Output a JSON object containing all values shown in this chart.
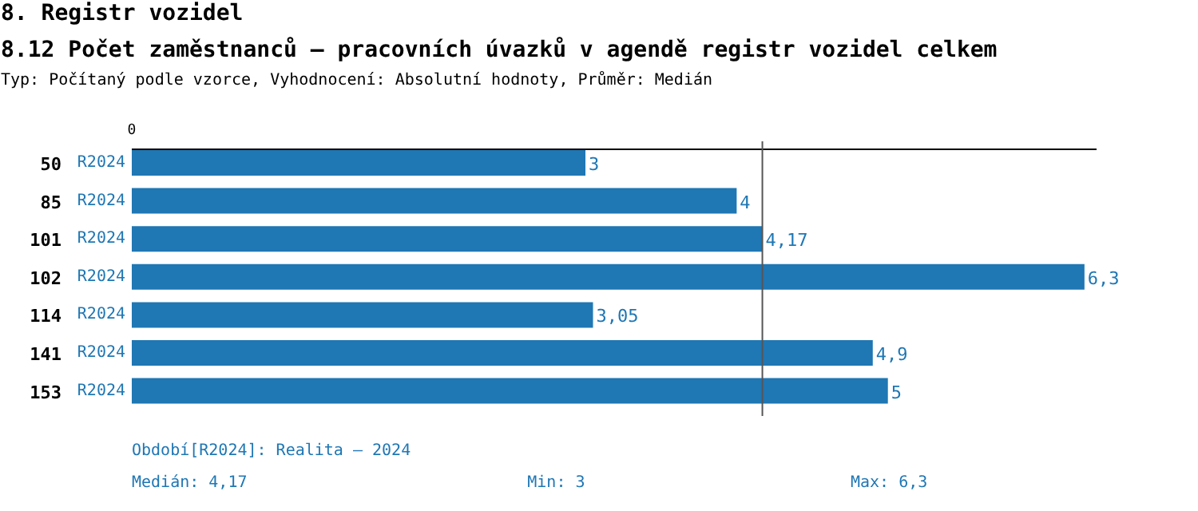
{
  "chart_data": {
    "type": "bar",
    "orientation": "horizontal",
    "title": "8. Registr vozidel",
    "subtitle": "8.12 Počet zaměstnanců – pracovních úvazků v agendě registr vozidel celkem",
    "categories": [
      "50",
      "85",
      "101",
      "102",
      "114",
      "141",
      "153"
    ],
    "series": [
      {
        "name": "R2024",
        "color": "#1f77b4",
        "values": [
          3,
          4,
          4.17,
          6.3,
          3.05,
          4.9,
          5
        ],
        "value_labels": [
          "3",
          "4",
          "4,17",
          "6,3",
          "3,05",
          "4,9",
          "5"
        ]
      }
    ],
    "xlim": [
      0,
      6.38
    ],
    "grid": false,
    "legend": false,
    "ref_lines": [
      {
        "axis": "x",
        "value": 4.17,
        "color": "#555555"
      }
    ],
    "annotations": [
      "Typ: Počítaný podle vzorce, Vyhodnocení: Absolutní hodnoty, Průměr: Medián",
      "0",
      "Období[R2024]: Realita – 2024",
      "Medián: 4,17",
      "Min: 3",
      "Max: 6,3"
    ]
  }
}
